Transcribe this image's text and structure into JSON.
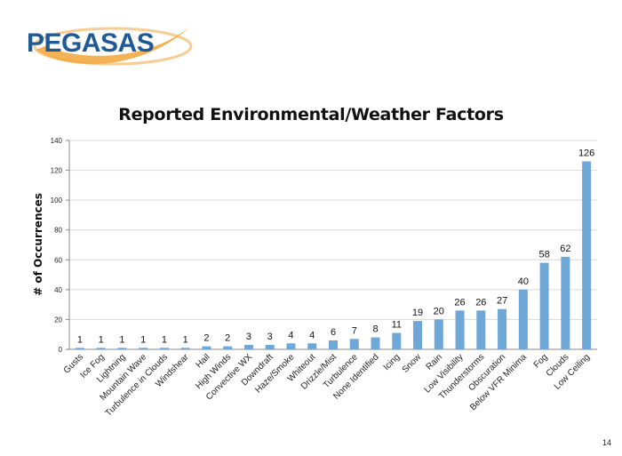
{
  "logo": {
    "text": "PEGASAS",
    "colors": {
      "blue": "#1f5a96",
      "orange": "#f2a43a"
    }
  },
  "page_number": "14",
  "chart_data": {
    "type": "bar",
    "title": "Reported Environmental/Weather Factors",
    "xlabel": "",
    "ylabel": "# of Occurrences",
    "ylim": [
      0,
      140
    ],
    "yticks": [
      0,
      20,
      40,
      60,
      80,
      100,
      120,
      140
    ],
    "grid": true,
    "bar_color": "#6fa7d7",
    "categories": [
      "Gusts",
      "Ice Fog",
      "Lightning",
      "Mountain Wave",
      "Turbulence in Clouds",
      "Windshear",
      "Hail",
      "High Winds",
      "Convective WX",
      "Downdraft",
      "Haze/Smoke",
      "Whiteout",
      "Drizzle/Mist",
      "Turbulence",
      "None Identified",
      "Icing",
      "Snow",
      "Rain",
      "Low Visibility",
      "Thunderstorms",
      "Obscuration",
      "Below VFR Minima",
      "Fog",
      "Clouds",
      "Low Ceiling"
    ],
    "values": [
      1,
      1,
      1,
      1,
      1,
      1,
      2,
      2,
      3,
      3,
      4,
      4,
      6,
      7,
      8,
      11,
      19,
      20,
      26,
      26,
      27,
      40,
      58,
      62,
      126
    ]
  }
}
